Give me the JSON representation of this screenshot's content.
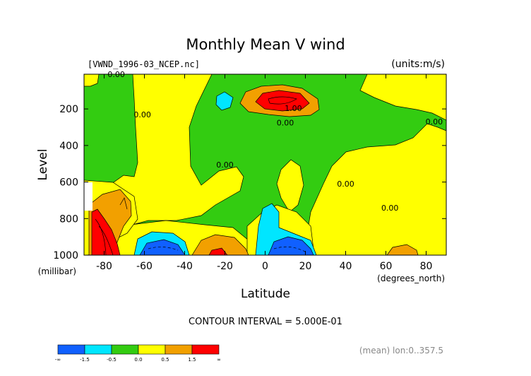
{
  "chart_data": {
    "type": "heatmap",
    "title": "Monthly Mean V wind",
    "file_label": "[VWND_1996-03_NCEP.nc]",
    "units_label": "(units:m/s)",
    "xlabel": "Latitude",
    "x_unit_label": "(degrees_north)",
    "ylabel": "Level",
    "y_unit_label": "(millibar)",
    "xlim": [
      -90,
      90
    ],
    "ylim": [
      1000,
      10
    ],
    "x_ticks": [
      -80,
      -60,
      -40,
      -20,
      0,
      20,
      40,
      60,
      80
    ],
    "x_tick_labels": [
      "-80",
      "-60",
      "-40",
      "-20",
      "0",
      "20",
      "40",
      "60",
      "80"
    ],
    "y_ticks": [
      200,
      400,
      600,
      800,
      1000
    ],
    "y_tick_labels": [
      "200",
      "400",
      "600",
      "800",
      "1000"
    ],
    "contour_interval_text": "CONTOUR INTERVAL = 5.000E-01",
    "mean_text": "(mean) lon:0..357.5",
    "contour_labels": [
      {
        "text": "0.00",
        "lat": -74,
        "level": 10
      },
      {
        "text": "0.00",
        "lat": -61,
        "level": 230
      },
      {
        "text": "1.00",
        "lat": 14,
        "level": 195
      },
      {
        "text": "0.00",
        "lat": 10,
        "level": 275
      },
      {
        "text": "0.00",
        "lat": -20,
        "level": 505
      },
      {
        "text": "0.00",
        "lat": 40,
        "level": 610
      },
      {
        "text": "0.00",
        "lat": 84,
        "level": 270
      },
      {
        "text": "0.00",
        "lat": 62,
        "level": 740
      }
    ],
    "colorbar": {
      "colors": [
        "#1060ff",
        "#00e6ff",
        "#33cc11",
        "#ffff00",
        "#f2a000",
        "#ff0000"
      ],
      "tick_labels": [
        "-∞",
        "-1.5",
        "-0.5",
        "0.0",
        "0.5",
        "1.5",
        "∞"
      ]
    },
    "regions": [
      {
        "value_class": "positive (0 to 0.5)",
        "color": "#ffff00",
        "lat": -60,
        "level": 400
      },
      {
        "value_class": "positive (0 to 0.5)",
        "color": "#ffff00",
        "lat": 55,
        "level": 600
      },
      {
        "value_class": "negative (-0.5 to 0)",
        "color": "#33cc11",
        "lat": -10,
        "level": 400
      },
      {
        "value_class": "strong positive (>1.5)",
        "color": "#ff0000",
        "lat": 8,
        "level": 150
      },
      {
        "value_class": "strong negative (<-1.5)",
        "color": "#1060ff",
        "lat": 12,
        "level": 960
      },
      {
        "value_class": "strong negative (<-1.5)",
        "color": "#1060ff",
        "lat": -55,
        "level": 960
      },
      {
        "value_class": "strong positive (>1.5)",
        "color": "#ff0000",
        "lat": -82,
        "level": 900
      },
      {
        "value_class": "strong positive (>1.5)",
        "color": "#ff0000",
        "lat": -25,
        "level": 990
      }
    ]
  }
}
